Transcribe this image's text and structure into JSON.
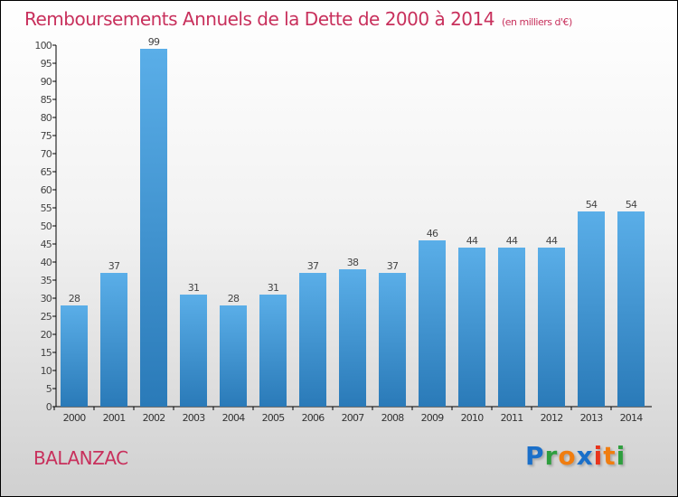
{
  "chart_data": {
    "type": "bar",
    "title": "Remboursements Annuels de la Dette de 2000 à 2014",
    "subtitle": "(en milliers d'€)",
    "categories": [
      "2000",
      "2001",
      "2002",
      "2003",
      "2004",
      "2005",
      "2006",
      "2007",
      "2008",
      "2009",
      "2010",
      "2011",
      "2012",
      "2013",
      "2014"
    ],
    "values": [
      28,
      37,
      99,
      31,
      28,
      31,
      37,
      38,
      37,
      46,
      44,
      44,
      44,
      54,
      54
    ],
    "ylim": [
      0,
      100
    ],
    "yticks": [
      0,
      5,
      10,
      15,
      20,
      25,
      30,
      35,
      40,
      45,
      50,
      55,
      60,
      65,
      70,
      75,
      80,
      85,
      90,
      95,
      100
    ],
    "xlabel": "",
    "ylabel": "",
    "bar_color": "#4a9fe0"
  },
  "location": "BALANZAC",
  "logo": {
    "text": "Proxiti",
    "letters": [
      "P",
      "r",
      "o",
      "x",
      "i",
      "t",
      "i"
    ],
    "colors": [
      "#1a6fc9",
      "#2e9e3e",
      "#f07d10",
      "#1a6fc9",
      "#e8341c",
      "#f07d10",
      "#2e9e3e"
    ]
  }
}
